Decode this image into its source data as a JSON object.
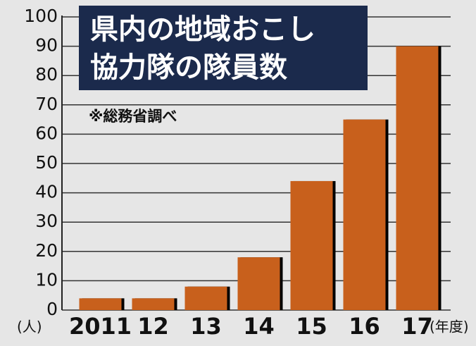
{
  "chart_data": {
    "type": "bar",
    "title": [
      "県内の地域おこし",
      "協力隊の隊員数"
    ],
    "note": "※総務省調べ",
    "ylabel": "(人)",
    "xlabel": "(年度)",
    "categories": [
      "2011",
      "12",
      "13",
      "14",
      "15",
      "16",
      "17"
    ],
    "values": [
      4,
      4,
      8,
      18,
      44,
      65,
      90
    ],
    "color": "#c8601c",
    "ylim": [
      0,
      100
    ],
    "yticks": [
      0,
      10,
      20,
      30,
      40,
      50,
      60,
      70,
      80,
      90,
      100
    ],
    "grid": true
  }
}
